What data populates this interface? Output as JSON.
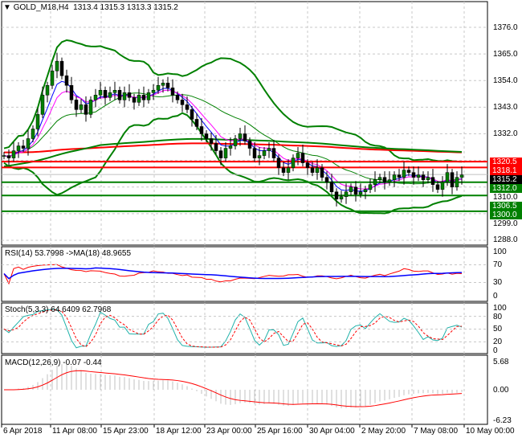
{
  "header": {
    "symbol": "GOLD_M18,H4",
    "ohlc": "1313.4 1315.3 1313.3 1315.2"
  },
  "price_axis": [
    "1376.0",
    "1365.0",
    "1354.0",
    "1343.0",
    "1332.0",
    "1310.0",
    "1299.0",
    "1288.0"
  ],
  "levels": [
    {
      "label": "1320.5",
      "value": 1320.5,
      "color": "#ff0000"
    },
    {
      "label": "1318.1",
      "value": 1318.1,
      "color": "#ff0000"
    },
    {
      "label": "1312.0",
      "value": 1312.0,
      "color": "#008000"
    },
    {
      "label": "1306.5",
      "value": 1306.5,
      "color": "#008000"
    },
    {
      "label": "1300.0",
      "value": 1300.0,
      "color": "#008000"
    }
  ],
  "current_price": {
    "label": "1315.2",
    "value": 1315.2
  },
  "closes": [
    1323,
    1322,
    1325,
    1327,
    1326,
    1330,
    1334,
    1340,
    1348,
    1352,
    1358,
    1362,
    1356,
    1352,
    1346,
    1342,
    1344,
    1340,
    1346,
    1348,
    1350,
    1347,
    1349,
    1350,
    1346,
    1349,
    1347,
    1345,
    1348,
    1346,
    1349,
    1350,
    1352,
    1353,
    1351,
    1348,
    1346,
    1344,
    1342,
    1338,
    1335,
    1332,
    1330,
    1328,
    1325,
    1322,
    1326,
    1327,
    1330,
    1332,
    1329,
    1326,
    1322,
    1323,
    1325,
    1326,
    1322,
    1318,
    1316,
    1318,
    1322,
    1324,
    1320,
    1318,
    1316,
    1318,
    1314,
    1312,
    1308,
    1305,
    1306,
    1308,
    1310,
    1307,
    1308,
    1309,
    1311,
    1313,
    1314,
    1312,
    1313,
    1315,
    1314,
    1317,
    1316,
    1314,
    1315,
    1313,
    1314,
    1311,
    1309,
    1312,
    1316,
    1310,
    1314,
    1315
  ],
  "rsi": {
    "label": "RSI(14) 53.7998  ->MA(18) 48.9655",
    "axis": [
      "100",
      "70",
      "30",
      "0"
    ]
  },
  "stoch": {
    "label": "Stoch(5,3,3) 64.6409 62.7968",
    "axis": [
      "100",
      "80",
      "50",
      "20",
      "0"
    ]
  },
  "macd": {
    "label": "MACD(12,26,9) -0.07 -0.44",
    "axis": [
      "5.68",
      "0.00",
      "-6.23"
    ]
  },
  "time_axis": [
    "6 Apr 2018",
    "11 Apr 08:00",
    "15 Apr 23:00",
    "18 Apr 12:00",
    "23 Apr 00:00",
    "25 Apr 16:00",
    "30 Apr 04:00",
    "2 May 20:00",
    "7 May 08:00",
    "10 May 00:00"
  ],
  "colors": {
    "bull": "#000000",
    "bear": "#000000",
    "bands": "#008000",
    "ma_slow": "#ff0000",
    "rsi": "#ff0000",
    "rsi_ma": "#0000ff",
    "stoch_k": "#20b2aa",
    "stoch_d": "#ff0000",
    "macd_hist": "#c0c0c0",
    "macd_signal": "#ff0000"
  }
}
